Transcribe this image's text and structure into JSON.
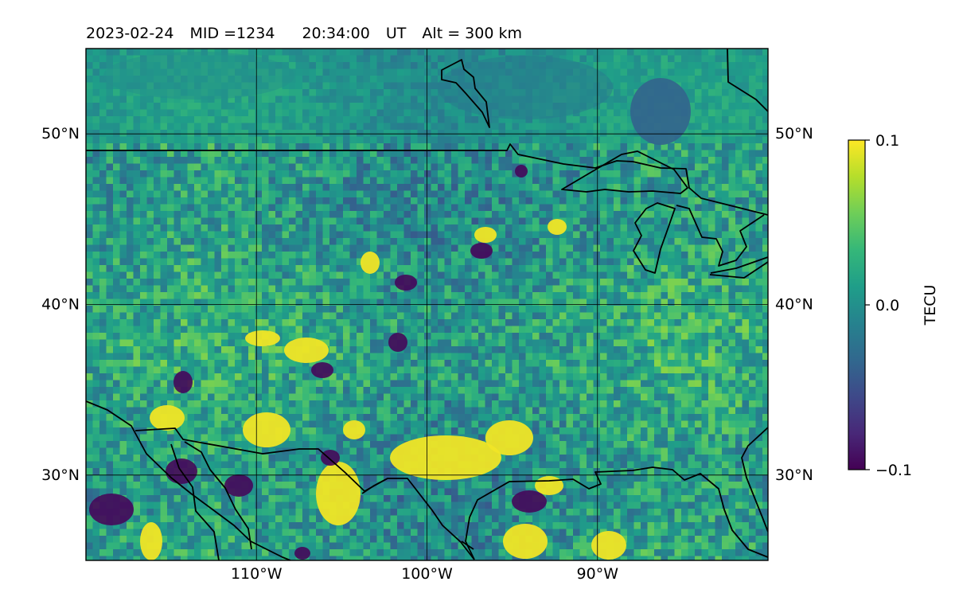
{
  "title": {
    "date": "2023-02-24",
    "mid": "MID =1234",
    "time": "20:34:00",
    "ut": "UT",
    "alt": "Alt = 300 km"
  },
  "map": {
    "lon_range": [
      -120,
      -80
    ],
    "lat_range": [
      25,
      55
    ],
    "lon_ticks": [
      {
        "value": -110,
        "label": "110°W"
      },
      {
        "value": -100,
        "label": "100°W"
      },
      {
        "value": -90,
        "label": "90°W"
      }
    ],
    "lat_ticks": [
      {
        "value": 50,
        "label": "50°N"
      },
      {
        "value": 40,
        "label": "40°N"
      },
      {
        "value": 30,
        "label": "30°N"
      }
    ]
  },
  "colorbar": {
    "label": "TECU",
    "ticks": [
      {
        "value": 0.1,
        "label": "0.1"
      },
      {
        "value": 0.0,
        "label": "0.0"
      },
      {
        "value": -0.1,
        "label": "−0.1"
      }
    ],
    "vmin": -0.1,
    "vmax": 0.1,
    "colormap": "viridis",
    "stops": [
      "#440154",
      "#482878",
      "#3e4989",
      "#31688e",
      "#26828e",
      "#1f9e89",
      "#35b779",
      "#6ece58",
      "#b5de2b",
      "#fde725"
    ]
  }
}
